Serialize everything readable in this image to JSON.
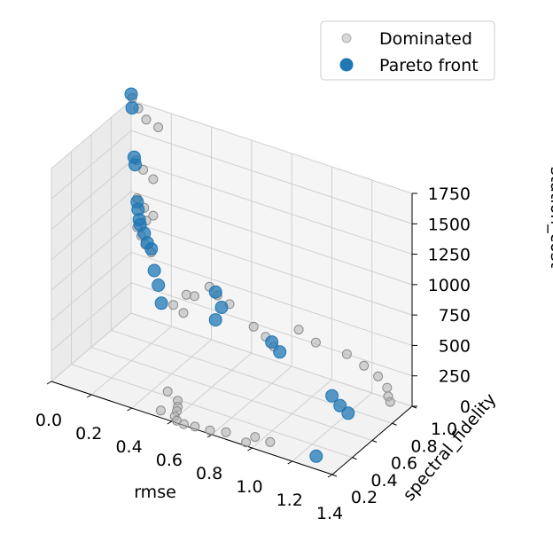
{
  "chart_data": {
    "type": "scatter3d",
    "xlabel": "rmse",
    "ylabel": "spectral_fidelity",
    "zlabel": "station_cost",
    "xlim": [
      0.0,
      1.4
    ],
    "ylim": [
      0.2,
      1.0
    ],
    "zlim": [
      0,
      1750
    ],
    "x_ticks": [
      "0.0",
      "0.2",
      "0.4",
      "0.6",
      "0.8",
      "1.0",
      "1.2",
      "1.4"
    ],
    "y_ticks": [
      "0.2",
      "0.4",
      "0.6",
      "0.8",
      "1.0"
    ],
    "z_ticks": [
      "0",
      "250",
      "500",
      "750",
      "1000",
      "1250",
      "1500",
      "1750"
    ],
    "grid": true,
    "legend_position": "top-right",
    "series": [
      {
        "name": "Dominated",
        "color": "#b0b0b0",
        "points": [
          [
            0.02,
            0.97,
            1800
          ],
          [
            0.06,
            0.95,
            1750
          ],
          [
            0.11,
            0.93,
            1700
          ],
          [
            0.16,
            0.95,
            1650
          ],
          [
            0.04,
            0.97,
            1300
          ],
          [
            0.08,
            0.96,
            1250
          ],
          [
            0.13,
            0.96,
            1200
          ],
          [
            0.05,
            0.96,
            1000
          ],
          [
            0.09,
            0.95,
            950
          ],
          [
            0.14,
            0.94,
            920
          ],
          [
            0.11,
            0.93,
            870
          ],
          [
            0.07,
            0.92,
            800
          ],
          [
            0.1,
            0.9,
            760
          ],
          [
            0.13,
            0.88,
            720
          ],
          [
            0.17,
            0.86,
            690
          ],
          [
            0.4,
            0.98,
            450
          ],
          [
            0.45,
            0.96,
            420
          ],
          [
            0.52,
            0.94,
            400
          ],
          [
            0.35,
            0.93,
            380
          ],
          [
            0.3,
            0.95,
            350
          ],
          [
            0.27,
            0.88,
            300
          ],
          [
            0.33,
            0.86,
            280
          ],
          [
            0.85,
            0.97,
            350
          ],
          [
            0.95,
            0.94,
            320
          ],
          [
            1.1,
            0.95,
            300
          ],
          [
            1.2,
            0.92,
            280
          ],
          [
            1.28,
            0.9,
            250
          ],
          [
            1.35,
            0.85,
            230
          ],
          [
            1.38,
            0.8,
            210
          ],
          [
            1.4,
            0.78,
            190
          ],
          [
            0.65,
            0.92,
            300
          ],
          [
            0.72,
            0.9,
            270
          ],
          [
            0.78,
            0.86,
            250
          ],
          [
            0.48,
            0.4,
            40
          ],
          [
            0.55,
            0.36,
            30
          ],
          [
            0.57,
            0.32,
            20
          ],
          [
            0.58,
            0.29,
            10
          ],
          [
            0.52,
            0.25,
            10
          ],
          [
            0.6,
            0.23,
            20
          ],
          [
            0.62,
            0.21,
            10
          ],
          [
            0.66,
            0.2,
            10
          ],
          [
            0.71,
            0.21,
            10
          ],
          [
            0.78,
            0.22,
            10
          ],
          [
            0.85,
            0.24,
            20
          ],
          [
            0.98,
            0.27,
            30
          ],
          [
            1.05,
            0.28,
            20
          ],
          [
            0.96,
            0.22,
            10
          ]
        ]
      },
      {
        "name": "Pareto front",
        "color": "#1f77b4",
        "points": [
          [
            0.0,
            1.0,
            1800
          ],
          [
            0.01,
            0.99,
            1700
          ],
          [
            0.02,
            0.99,
            1300
          ],
          [
            0.03,
            0.98,
            1250
          ],
          [
            0.04,
            0.98,
            950
          ],
          [
            0.05,
            0.97,
            900
          ],
          [
            0.06,
            0.96,
            830
          ],
          [
            0.07,
            0.95,
            800
          ],
          [
            0.1,
            0.93,
            760
          ],
          [
            0.12,
            0.92,
            700
          ],
          [
            0.15,
            0.9,
            680
          ],
          [
            0.17,
            0.89,
            520
          ],
          [
            0.2,
            0.87,
            430
          ],
          [
            0.22,
            0.86,
            300
          ],
          [
            0.48,
            0.88,
            520
          ],
          [
            0.52,
            0.86,
            430
          ],
          [
            0.5,
            0.84,
            330
          ],
          [
            0.8,
            0.8,
            340
          ],
          [
            0.85,
            0.78,
            300
          ],
          [
            1.15,
            0.7,
            160
          ],
          [
            1.2,
            0.68,
            120
          ],
          [
            1.25,
            0.66,
            100
          ],
          [
            1.27,
            0.3,
            10
          ]
        ]
      }
    ]
  }
}
